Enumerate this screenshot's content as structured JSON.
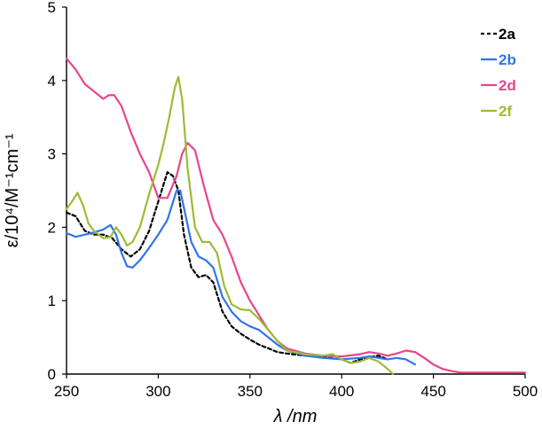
{
  "chart_data": {
    "type": "line",
    "title": "",
    "xlabel": "λ /nm",
    "ylabel": "ε/10⁴/M⁻¹cm⁻¹",
    "xlim": [
      250,
      500
    ],
    "ylim": [
      0,
      5
    ],
    "xticks": [
      250,
      300,
      350,
      400,
      450,
      500
    ],
    "yticks": [
      0,
      1,
      2,
      3,
      4,
      5
    ],
    "legend_position": "top-right",
    "series": [
      {
        "name": "2a",
        "color": "#000000",
        "dash": "dashed",
        "x": [
          250,
          255,
          260,
          265,
          270,
          275,
          280,
          285,
          290,
          295,
          300,
          305,
          308,
          311,
          314,
          318,
          322,
          326,
          330,
          335,
          340,
          345,
          350,
          355,
          360,
          365,
          370,
          380,
          390,
          400,
          405,
          410,
          415,
          420,
          425
        ],
        "y": [
          2.2,
          2.15,
          1.95,
          1.9,
          1.9,
          1.85,
          1.7,
          1.6,
          1.7,
          1.95,
          2.35,
          2.75,
          2.7,
          2.5,
          1.9,
          1.45,
          1.32,
          1.35,
          1.25,
          0.85,
          0.65,
          0.55,
          0.47,
          0.4,
          0.35,
          0.3,
          0.28,
          0.25,
          0.23,
          0.2,
          0.15,
          0.2,
          0.23,
          0.25,
          0.2
        ]
      },
      {
        "name": "2b",
        "color": "#2f74ee",
        "dash": "solid",
        "x": [
          250,
          255,
          260,
          265,
          270,
          274,
          277,
          280,
          283,
          286,
          290,
          295,
          300,
          305,
          310,
          312,
          315,
          318,
          322,
          326,
          330,
          335,
          340,
          345,
          350,
          355,
          360,
          365,
          370,
          380,
          390,
          400,
          410,
          415,
          420,
          425,
          430,
          435,
          440
        ],
        "y": [
          1.92,
          1.87,
          1.9,
          1.93,
          1.97,
          2.03,
          1.9,
          1.65,
          1.47,
          1.45,
          1.55,
          1.72,
          1.9,
          2.1,
          2.5,
          2.5,
          2.15,
          1.8,
          1.6,
          1.55,
          1.45,
          1.05,
          0.85,
          0.72,
          0.65,
          0.6,
          0.5,
          0.4,
          0.32,
          0.25,
          0.22,
          0.2,
          0.22,
          0.24,
          0.22,
          0.2,
          0.22,
          0.2,
          0.13
        ]
      },
      {
        "name": "2d",
        "color": "#e8458a",
        "dash": "solid",
        "x": [
          250,
          255,
          260,
          265,
          270,
          273,
          276,
          280,
          285,
          290,
          295,
          300,
          305,
          310,
          313,
          316,
          320,
          325,
          330,
          335,
          340,
          345,
          350,
          355,
          360,
          365,
          370,
          380,
          390,
          400,
          410,
          415,
          420,
          425,
          430,
          435,
          440,
          445,
          450,
          455,
          460,
          465,
          470,
          480,
          490,
          500
        ],
        "y": [
          4.3,
          4.15,
          3.95,
          3.85,
          3.75,
          3.8,
          3.8,
          3.65,
          3.3,
          3.0,
          2.75,
          2.4,
          2.4,
          2.7,
          3.0,
          3.15,
          3.05,
          2.55,
          2.1,
          1.9,
          1.6,
          1.25,
          1.0,
          0.8,
          0.6,
          0.45,
          0.35,
          0.28,
          0.25,
          0.24,
          0.27,
          0.3,
          0.28,
          0.25,
          0.28,
          0.32,
          0.3,
          0.22,
          0.13,
          0.07,
          0.04,
          0.02,
          0.02,
          0.02,
          0.02,
          0.02
        ]
      },
      {
        "name": "2f",
        "color": "#9dbb35",
        "dash": "solid",
        "x": [
          250,
          253,
          256,
          259,
          262,
          265,
          270,
          274,
          277,
          280,
          283,
          286,
          290,
          295,
          300,
          303,
          306,
          309,
          311,
          313,
          316,
          320,
          324,
          328,
          332,
          336,
          340,
          345,
          350,
          355,
          360,
          365,
          370,
          380,
          390,
          395,
          400,
          405,
          410,
          415,
          420,
          425,
          428
        ],
        "y": [
          2.25,
          2.35,
          2.47,
          2.3,
          2.05,
          1.95,
          1.85,
          1.87,
          2.0,
          1.9,
          1.75,
          1.8,
          2.0,
          2.45,
          2.85,
          3.15,
          3.5,
          3.9,
          4.05,
          3.75,
          2.8,
          2.0,
          1.8,
          1.8,
          1.65,
          1.2,
          0.95,
          0.88,
          0.87,
          0.75,
          0.6,
          0.45,
          0.32,
          0.27,
          0.25,
          0.27,
          0.2,
          0.15,
          0.17,
          0.22,
          0.17,
          0.07,
          0.0
        ]
      }
    ]
  }
}
